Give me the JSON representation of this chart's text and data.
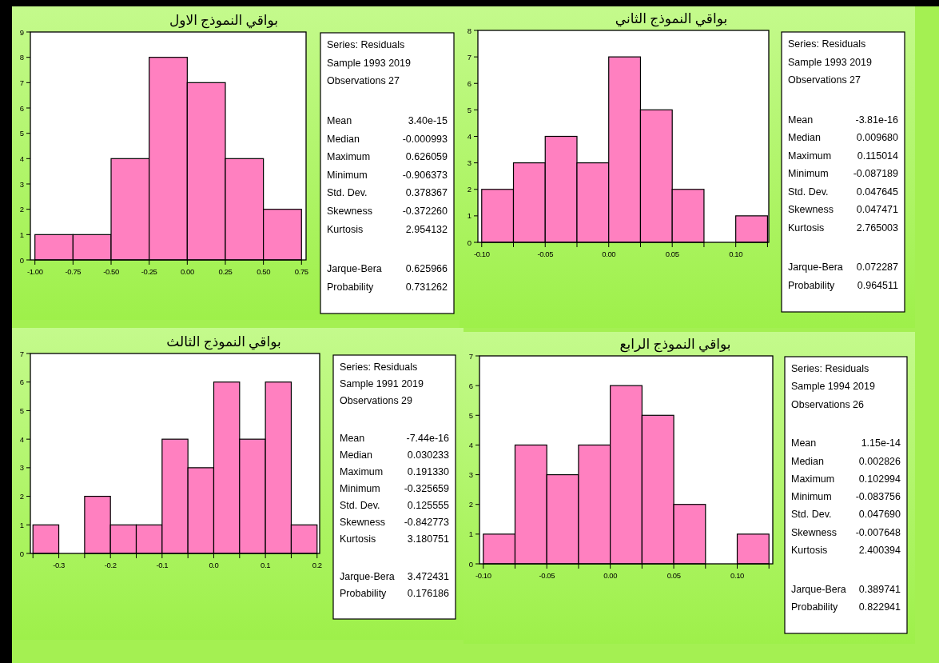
{
  "chart_data": [
    {
      "type": "histogram",
      "title": "بواقي النموذج الاول",
      "color": "#ff80c0",
      "bins": [
        -1.0,
        -0.75,
        -0.5,
        -0.25,
        0.0,
        0.25,
        0.5,
        0.75
      ],
      "values": [
        1,
        1,
        4,
        8,
        7,
        4,
        2
      ],
      "xlim": [
        -1.03,
        0.78
      ],
      "xticks": [
        {
          "value": -1.0,
          "label": "-1.00"
        },
        {
          "value": -0.75,
          "label": "-0.75"
        },
        {
          "value": -0.5,
          "label": "-0.50"
        },
        {
          "value": -0.25,
          "label": "-0.25"
        },
        {
          "value": 0,
          "label": "0.00"
        },
        {
          "value": 0.25,
          "label": "0.25"
        },
        {
          "value": 0.5,
          "label": "0.50"
        },
        {
          "value": 0.75,
          "label": "0.75"
        }
      ],
      "ylim": [
        0,
        9
      ],
      "yticks": [
        0,
        1,
        2,
        3,
        4,
        5,
        6,
        7,
        8,
        9
      ],
      "annotations": [
        "Series: Residuals",
        "Sample 1993 2019",
        "Observations 27",
        "Mean\t3.40e-15",
        "Median\t-0.000993",
        "Maximum\t0.626059",
        "Minimum\t-0.906373",
        "Std. Dev.\t0.378367",
        "Skewness\t-0.372260",
        "Kurtosis\t2.954132",
        "Jarque-Bera\t0.625966",
        "Probability\t0.731262"
      ]
    },
    {
      "type": "histogram",
      "title": "بواقي النموذج الثاني",
      "color": "#ff80c0",
      "bins": [
        -0.1,
        -0.075,
        -0.05,
        -0.025,
        0.0,
        0.025,
        0.05,
        0.075,
        0.1,
        0.125
      ],
      "values": [
        2,
        3,
        4,
        3,
        7,
        5,
        2,
        0,
        1
      ],
      "xlim": [
        -0.103,
        0.126
      ],
      "xticks": [
        {
          "value": -0.1,
          "label": "-0.10"
        },
        {
          "value": -0.075,
          "label": null
        },
        {
          "value": -0.05,
          "label": "-0.05"
        },
        {
          "value": -0.025,
          "label": null
        },
        {
          "value": 0,
          "label": "0.00"
        },
        {
          "value": 0.025,
          "label": null
        },
        {
          "value": 0.05,
          "label": "0.05"
        },
        {
          "value": 0.075,
          "label": null
        },
        {
          "value": 0.1,
          "label": "0.10"
        },
        {
          "value": 0.125,
          "label": null
        }
      ],
      "ylim": [
        0,
        8
      ],
      "yticks": [
        0,
        1,
        2,
        3,
        4,
        5,
        6,
        7,
        8
      ],
      "annotations": [
        "Series: Residuals",
        "Sample 1993 2019",
        "Observations 27",
        "Mean\t-3.81e-16",
        "Median\t0.009680",
        "Maximum\t0.115014",
        "Minimum\t-0.087189",
        "Std. Dev.\t0.047645",
        "Skewness\t0.047471",
        "Kurtosis\t2.765003",
        "Jarque-Bera\t0.072287",
        "Probability\t0.964511"
      ]
    },
    {
      "type": "histogram",
      "title": "بواقي النموذج الثالث",
      "color": "#ff80c0",
      "bins": [
        -0.35,
        -0.3,
        -0.25,
        -0.2,
        -0.15,
        -0.1,
        -0.05,
        0.0,
        0.05,
        0.1,
        0.15,
        0.2
      ],
      "values": [
        1,
        0,
        2,
        1,
        1,
        4,
        3,
        6,
        4,
        6,
        1
      ],
      "xlim": [
        -0.355,
        0.205
      ],
      "xticks": [
        {
          "value": -0.35,
          "label": null
        },
        -0.3,
        {
          "value": -0.25,
          "label": null
        },
        -0.2,
        {
          "value": -0.15,
          "label": null
        },
        -0.1,
        {
          "value": -0.05,
          "label": null
        },
        {
          "value": 0,
          "label": "0.0"
        },
        {
          "value": 0.05,
          "label": null
        },
        0.1,
        {
          "value": 0.15,
          "label": null
        },
        0.2
      ],
      "ylim": [
        0,
        7
      ],
      "yticks": [
        0,
        1,
        2,
        3,
        4,
        5,
        6,
        7
      ],
      "annotations": [
        "Series: Residuals",
        "Sample 1991 2019",
        "Observations 29",
        "Mean\t-7.44e-16",
        "Median\t0.030233",
        "Maximum\t0.191330",
        "Minimum\t-0.325659",
        "Std. Dev.\t0.125555",
        "Skewness\t-0.842773",
        "Kurtosis\t3.180751",
        "Jarque-Bera\t3.472431",
        "Probability\t0.176186"
      ]
    },
    {
      "type": "histogram",
      "title": "بواقي النموذج الرابع",
      "color": "#ff80c0",
      "bins": [
        -0.1,
        -0.075,
        -0.05,
        -0.025,
        0.0,
        0.025,
        0.05,
        0.075,
        0.1,
        0.125
      ],
      "values": [
        1,
        4,
        3,
        4,
        6,
        5,
        2,
        0,
        1
      ],
      "xlim": [
        -0.103,
        0.128
      ],
      "xticks": [
        {
          "value": -0.1,
          "label": "-0.10"
        },
        {
          "value": -0.075,
          "label": null
        },
        {
          "value": -0.05,
          "label": "-0.05"
        },
        {
          "value": -0.025,
          "label": null
        },
        {
          "value": 0,
          "label": "0.00"
        },
        {
          "value": 0.025,
          "label": null
        },
        {
          "value": 0.05,
          "label": "0.05"
        },
        {
          "value": 0.075,
          "label": null
        },
        {
          "value": 0.1,
          "label": "0.10"
        },
        {
          "value": 0.125,
          "label": null
        }
      ],
      "ylim": [
        0,
        7
      ],
      "yticks": [
        0,
        1,
        2,
        3,
        4,
        5,
        6,
        7
      ],
      "annotations": [
        "Series: Residuals",
        "Sample 1994 2019",
        "Observations 26",
        "Mean\t1.15e-14",
        "Median\t0.002826",
        "Maximum\t0.102994",
        "Minimum\t-0.083756",
        "Std. Dev.\t0.047690",
        "Skewness\t-0.007648",
        "Kurtosis\t2.400394",
        "Jarque-Bera\t0.389741",
        "Probability\t0.822941"
      ]
    }
  ]
}
